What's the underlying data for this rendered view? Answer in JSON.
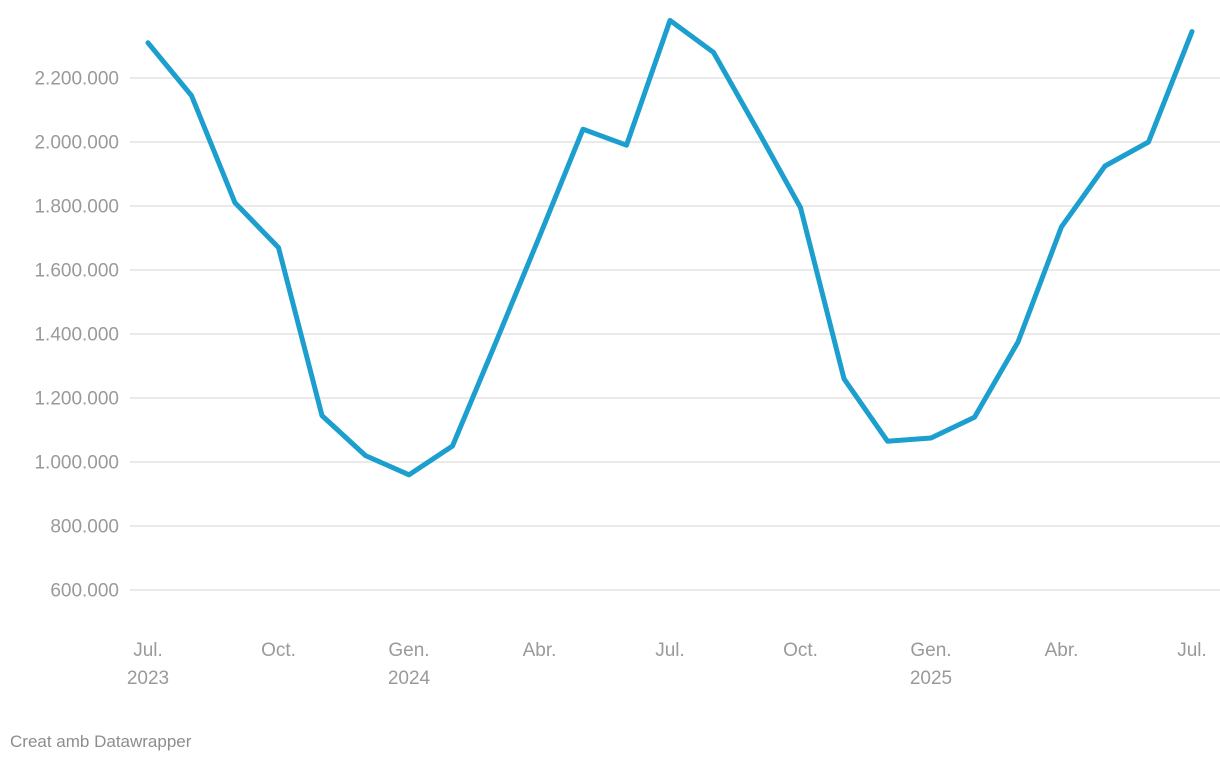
{
  "chart_data": {
    "type": "line",
    "title": "",
    "xlabel": "",
    "ylabel": "",
    "legend": "none",
    "grid": "horizontal",
    "x": [
      "2023-07",
      "2023-08",
      "2023-09",
      "2023-10",
      "2023-11",
      "2023-12",
      "2024-01",
      "2024-02",
      "2024-03",
      "2024-04",
      "2024-05",
      "2024-06",
      "2024-07",
      "2024-08",
      "2024-09",
      "2024-10",
      "2024-11",
      "2024-12",
      "2025-01",
      "2025-02",
      "2025-03",
      "2025-04",
      "2025-05",
      "2025-06",
      "2025-07"
    ],
    "series": [
      {
        "name": "",
        "values": [
          2310000,
          2145000,
          1810000,
          1670000,
          1145000,
          1020000,
          960000,
          1050000,
          1375000,
          1705000,
          2040000,
          1990000,
          2380000,
          2280000,
          2040000,
          1795000,
          1260000,
          1065000,
          1075000,
          1140000,
          1375000,
          1735000,
          1925000,
          2000000,
          2345000
        ]
      }
    ],
    "y_axis": {
      "min": 600000,
      "max": 2200000,
      "step": 200000,
      "tick_values": [
        600000,
        800000,
        1000000,
        1200000,
        1400000,
        1600000,
        1800000,
        2000000,
        2200000
      ],
      "tick_labels": [
        "600.000",
        "800.000",
        "1.000.000",
        "1.200.000",
        "1.400.000",
        "1.600.000",
        "1.800.000",
        "2.000.000",
        "2.200.000"
      ]
    },
    "x_axis": {
      "ticks": [
        {
          "index": 0,
          "line1": "Jul.",
          "line2": "2023"
        },
        {
          "index": 3,
          "line1": "Oct.",
          "line2": ""
        },
        {
          "index": 6,
          "line1": "Gen.",
          "line2": "2024"
        },
        {
          "index": 9,
          "line1": "Abr.",
          "line2": ""
        },
        {
          "index": 12,
          "line1": "Jul.",
          "line2": ""
        },
        {
          "index": 15,
          "line1": "Oct.",
          "line2": ""
        },
        {
          "index": 18,
          "line1": "Gen.",
          "line2": "2025"
        },
        {
          "index": 21,
          "line1": "Abr.",
          "line2": ""
        },
        {
          "index": 24,
          "line1": "Jul.",
          "line2": ""
        }
      ]
    },
    "colors": {
      "line": "#1c9fce",
      "grid": "#e4e4e4",
      "tick_text": "#9a9a9a",
      "credit_text": "#8d8d8d"
    }
  },
  "footer": {
    "credit": "Creat amb Datawrapper"
  }
}
